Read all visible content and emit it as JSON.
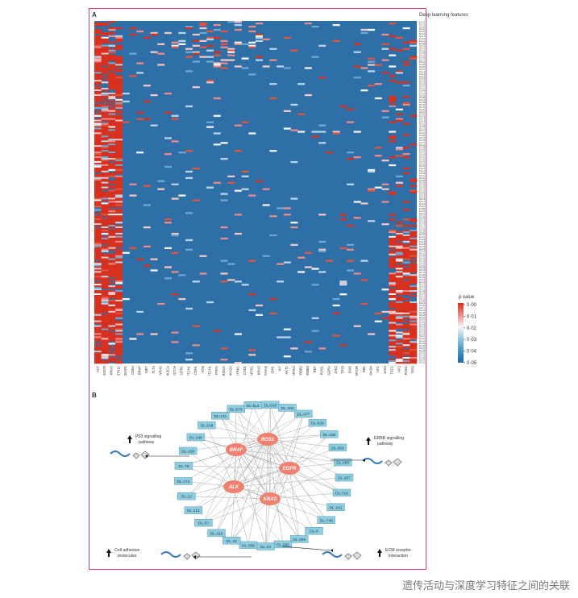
{
  "figure": {
    "panel_a_label": "A",
    "panel_b_label": "B",
    "heatmap_title": "Deep learning features",
    "legend_title": "p value",
    "legend_ticks": [
      "0·00",
      "0·01",
      "0·02",
      "0·03",
      "0·04",
      "0·05"
    ],
    "legend_colors": [
      "#d7301f",
      "#ef8a8a",
      "#f7f7f7",
      "#92c5de",
      "#4393c3",
      "#2166ac"
    ],
    "genes": [
      "ALK",
      "EGFR",
      "KRAS",
      "STK11",
      "KEAP1",
      "CDK4",
      "BRAF",
      "MET",
      "FLT3",
      "NRAS",
      "PIK3CA",
      "NOTCH",
      "FGFR1",
      "PTCH1",
      "CDH1",
      "ATM",
      "NOTCH1",
      "PTEN",
      "ARID1A",
      "CDKN2A",
      "NTRK1",
      "CCND1",
      "MAP2K1",
      "KRAS",
      "GNAQ",
      "IDH1",
      "KIT",
      "AKT1",
      "MAP2K2",
      "ERBB2",
      "ERBB3",
      "RET",
      "ROS1",
      "PDGFRA",
      "JAK2",
      "TP53",
      "SMO",
      "MTOR",
      "RB1",
      "SMAD4",
      "NF1",
      "JAK3",
      "TSC1",
      "NF2",
      "ROS1",
      "TP53"
    ],
    "feature_labels": [
      "DL-37",
      "DL-72",
      "DL-209",
      "DL-167",
      "DL-102",
      "DL-19",
      "DL-178",
      "DL-193",
      "DL-114",
      "DL-88",
      "DL-131",
      "DL-117",
      "DL-120",
      "DL-99",
      "DL-135",
      "DL-203",
      "DL-177",
      "DL-210",
      "DL-35",
      "DL-92",
      "DL-57",
      "DL-142",
      "DL-108",
      "DL-161",
      "DL-184",
      "DL-109",
      "DL-15",
      "DL-143",
      "DL-11",
      "DL-94",
      "DL-110",
      "DL-32",
      "DL-25",
      "DL-109",
      "DL-35"
    ],
    "caption": "遗传活动与深度学习特征之间的关联"
  },
  "network": {
    "hubs": [
      "BRAF",
      "ROS1",
      "EGFR",
      "ALK",
      "KRAS"
    ],
    "nodes": [
      "DL-579",
      "DL-614",
      "DL-618",
      "DL-493",
      "DL-477",
      "DL-629",
      "DL-435",
      "DL-663",
      "DL-695",
      "DL-267",
      "DL-716",
      "DL-241",
      "DL-749",
      "DL-6",
      "DL-299",
      "DL-282",
      "DL-24",
      "DL-258",
      "DL-34",
      "DL-218",
      "DL-57",
      "DL-212",
      "DL-22",
      "DL-174",
      "DL-76",
      "DL-159",
      "DL-145",
      "DL-108",
      "DL-131"
    ],
    "pathways": {
      "p53": "P53 signalling pathway",
      "erbb": "ERBB signalling pathway",
      "cell_adhesion": "Cell adhesion molecules",
      "ecm": "ECM receptor interaction"
    },
    "colors": {
      "hub": "#f08070",
      "node": "#8ecde0",
      "edge": "#a9a9a9"
    }
  }
}
